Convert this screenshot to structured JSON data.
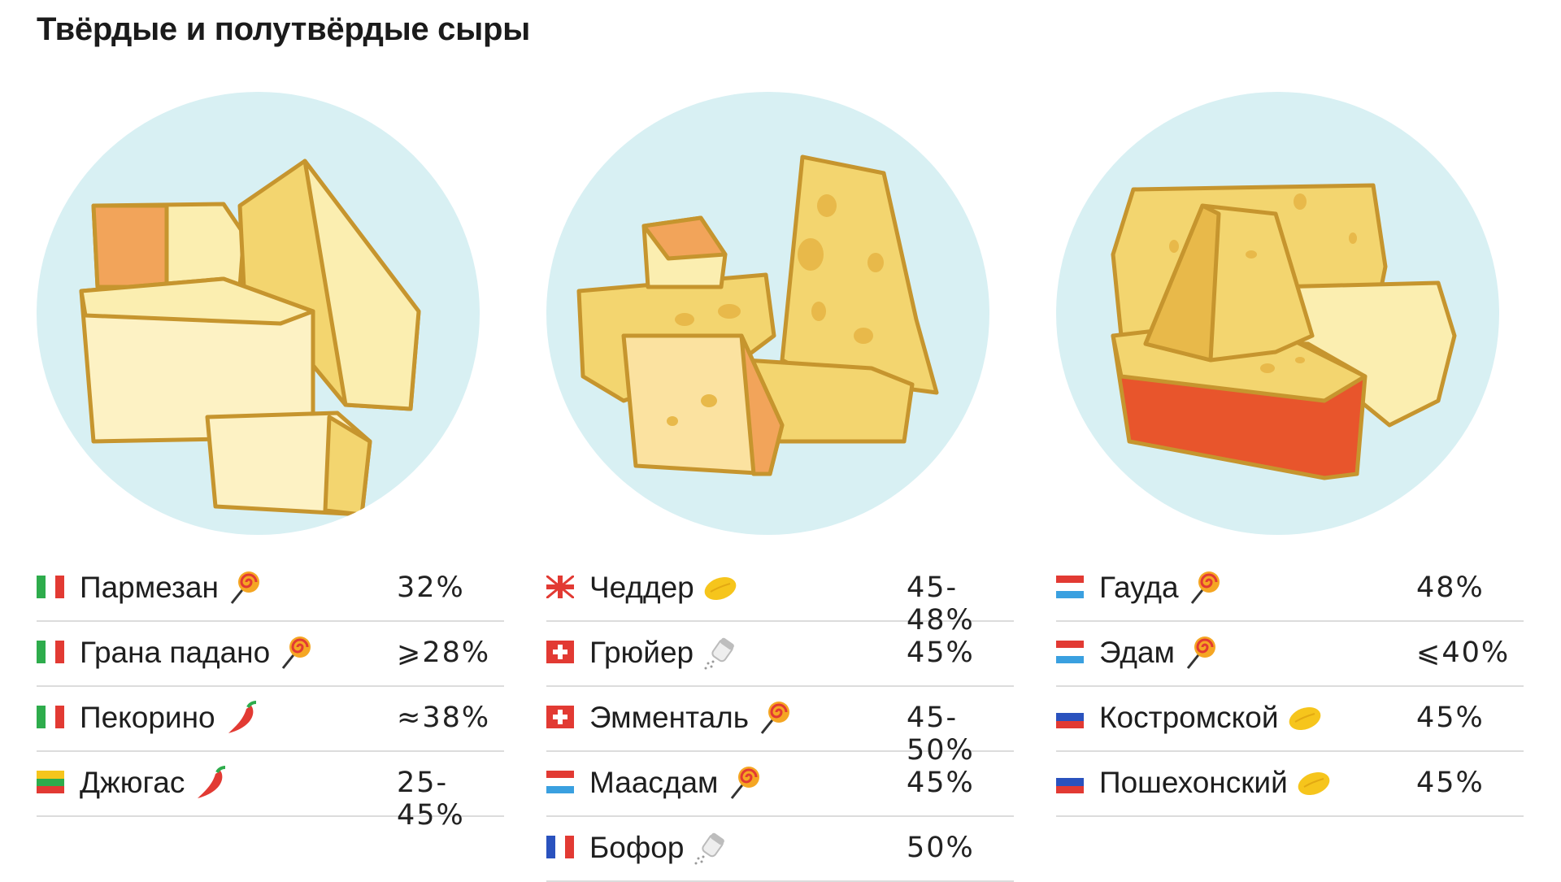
{
  "title": "Твёрдые и полутвёрдые сыры",
  "columns": [
    {
      "rows": [
        {
          "flag": "italy-flag",
          "name": "Пармезан",
          "icon": "lollipop-icon",
          "pct": "32%"
        },
        {
          "flag": "italy-flag",
          "name": "Грана падано",
          "icon": "lollipop-icon",
          "pct": "⩾28%"
        },
        {
          "flag": "italy-flag",
          "name": "Пекорино",
          "icon": "chili-pepper-icon",
          "pct": "≈38%"
        },
        {
          "flag": "lithuania-flag",
          "name": "Джюгас",
          "icon": "chili-pepper-icon",
          "pct": "25-45%"
        }
      ]
    },
    {
      "rows": [
        {
          "flag": "uk-flag",
          "name": "Чеддер",
          "icon": "lemon-icon",
          "pct": "45-48%"
        },
        {
          "flag": "switzerland-flag",
          "name": "Грюйер",
          "icon": "salt-shaker-icon",
          "pct": "45%"
        },
        {
          "flag": "switzerland-flag",
          "name": "Эмменталь",
          "icon": "lollipop-icon",
          "pct": "45-50%"
        },
        {
          "flag": "netherlands-flag",
          "name": "Маасдам",
          "icon": "lollipop-icon",
          "pct": "45%"
        },
        {
          "flag": "france-flag",
          "name": "Бофор",
          "icon": "salt-shaker-icon",
          "pct": "50%"
        }
      ]
    },
    {
      "rows": [
        {
          "flag": "netherlands-flag",
          "name": "Гауда",
          "icon": "lollipop-icon",
          "pct": "48%"
        },
        {
          "flag": "netherlands-flag",
          "name": "Эдам",
          "icon": "lollipop-icon",
          "pct": "⩽40%"
        },
        {
          "flag": "russia-flag",
          "name": "Костромской",
          "icon": "lemon-icon",
          "pct": "45%"
        },
        {
          "flag": "russia-flag",
          "name": "Пошехонский",
          "icon": "lemon-icon",
          "pct": "45%"
        }
      ]
    }
  ],
  "colors": {
    "circle_bg": "#d8f0f3",
    "cheese_light": "#fbeeb0",
    "cheese_mid": "#f3d56f",
    "cheese_dark": "#e8b94a",
    "outline": "#c6952e",
    "rind_red": "#e8552c",
    "rind_orange": "#f2a45a"
  }
}
